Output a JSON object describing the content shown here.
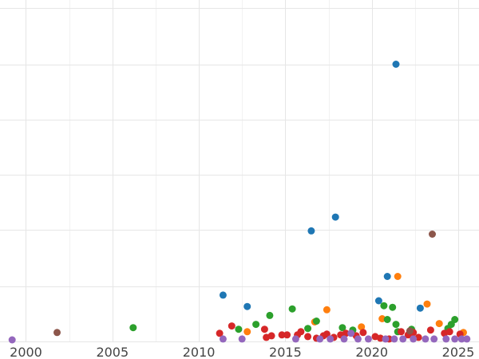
{
  "chart_data": {
    "type": "scatter",
    "title": "",
    "xlabel": "",
    "ylabel": "",
    "xlim": [
      1998.5,
      2026.2
    ],
    "ylim": [
      0,
      420
    ],
    "xticks": [
      2000,
      2005,
      2010,
      2015,
      2020,
      2025
    ],
    "xtick_labels": [
      "2000",
      "2005",
      "2010",
      "2015",
      "2020",
      "2025"
    ],
    "yticks": [
      0,
      68,
      137,
      205,
      273,
      341,
      410
    ],
    "grid": true,
    "legend": "none",
    "series": [
      {
        "color": "#1f77b4",
        "points": [
          {
            "x": 2011.4,
            "y": 57
          },
          {
            "x": 2012.8,
            "y": 43
          },
          {
            "x": 2016.5,
            "y": 136
          },
          {
            "x": 2017.9,
            "y": 153
          },
          {
            "x": 2020.4,
            "y": 50
          },
          {
            "x": 2020.9,
            "y": 80
          },
          {
            "x": 2021.4,
            "y": 341
          },
          {
            "x": 2022.8,
            "y": 41
          }
        ]
      },
      {
        "color": "#ff7f0e",
        "points": [
          {
            "x": 2012.8,
            "y": 12
          },
          {
            "x": 2016.7,
            "y": 24
          },
          {
            "x": 2017.4,
            "y": 39
          },
          {
            "x": 2019.4,
            "y": 18
          },
          {
            "x": 2020.6,
            "y": 28
          },
          {
            "x": 2021.5,
            "y": 80
          },
          {
            "x": 2023.2,
            "y": 46
          },
          {
            "x": 2023.9,
            "y": 22
          },
          {
            "x": 2025.3,
            "y": 11
          }
        ]
      },
      {
        "color": "#2ca02c",
        "points": [
          {
            "x": 2006.2,
            "y": 17
          },
          {
            "x": 2012.3,
            "y": 15
          },
          {
            "x": 2013.3,
            "y": 21
          },
          {
            "x": 2014.1,
            "y": 32
          },
          {
            "x": 2015.4,
            "y": 40
          },
          {
            "x": 2016.3,
            "y": 16
          },
          {
            "x": 2016.8,
            "y": 25
          },
          {
            "x": 2018.3,
            "y": 17
          },
          {
            "x": 2018.9,
            "y": 14
          },
          {
            "x": 2020.7,
            "y": 44
          },
          {
            "x": 2020.9,
            "y": 27
          },
          {
            "x": 2021.2,
            "y": 42
          },
          {
            "x": 2021.4,
            "y": 21
          },
          {
            "x": 2021.5,
            "y": 12
          },
          {
            "x": 2022.3,
            "y": 15
          },
          {
            "x": 2024.4,
            "y": 16
          },
          {
            "x": 2024.6,
            "y": 21
          },
          {
            "x": 2024.8,
            "y": 27
          }
        ]
      },
      {
        "color": "#d62728",
        "points": [
          {
            "x": 2011.2,
            "y": 10
          },
          {
            "x": 2011.9,
            "y": 19
          },
          {
            "x": 2013.8,
            "y": 15
          },
          {
            "x": 2013.9,
            "y": 5
          },
          {
            "x": 2014.2,
            "y": 7
          },
          {
            "x": 2014.8,
            "y": 8
          },
          {
            "x": 2015.1,
            "y": 8
          },
          {
            "x": 2015.7,
            "y": 8
          },
          {
            "x": 2015.9,
            "y": 12
          },
          {
            "x": 2016.3,
            "y": 6
          },
          {
            "x": 2016.8,
            "y": 4
          },
          {
            "x": 2017.2,
            "y": 7
          },
          {
            "x": 2017.4,
            "y": 9
          },
          {
            "x": 2017.8,
            "y": 5
          },
          {
            "x": 2018.2,
            "y": 8
          },
          {
            "x": 2018.5,
            "y": 10
          },
          {
            "x": 2019.1,
            "y": 7
          },
          {
            "x": 2019.5,
            "y": 11
          },
          {
            "x": 2020.2,
            "y": 6
          },
          {
            "x": 2020.5,
            "y": 4
          },
          {
            "x": 2021.0,
            "y": 3
          },
          {
            "x": 2021.7,
            "y": 12
          },
          {
            "x": 2022.1,
            "y": 8
          },
          {
            "x": 2022.4,
            "y": 11
          },
          {
            "x": 2022.7,
            "y": 5
          },
          {
            "x": 2023.4,
            "y": 14
          },
          {
            "x": 2024.2,
            "y": 10
          },
          {
            "x": 2024.5,
            "y": 12
          },
          {
            "x": 2025.1,
            "y": 9
          }
        ]
      },
      {
        "color": "#8c564b",
        "points": [
          {
            "x": 2001.8,
            "y": 11
          },
          {
            "x": 2022.2,
            "y": 13
          },
          {
            "x": 2023.5,
            "y": 132
          }
        ]
      },
      {
        "color": "#9467bd",
        "points": [
          {
            "x": 1999.2,
            "y": 2
          },
          {
            "x": 2011.4,
            "y": 3
          },
          {
            "x": 2012.5,
            "y": 3
          },
          {
            "x": 2015.6,
            "y": 3
          },
          {
            "x": 2017.0,
            "y": 3
          },
          {
            "x": 2017.6,
            "y": 3
          },
          {
            "x": 2018.4,
            "y": 3
          },
          {
            "x": 2018.8,
            "y": 10
          },
          {
            "x": 2019.2,
            "y": 3
          },
          {
            "x": 2019.8,
            "y": 3
          },
          {
            "x": 2020.8,
            "y": 3
          },
          {
            "x": 2021.3,
            "y": 3
          },
          {
            "x": 2021.8,
            "y": 3
          },
          {
            "x": 2022.4,
            "y": 3
          },
          {
            "x": 2023.1,
            "y": 3
          },
          {
            "x": 2023.6,
            "y": 3
          },
          {
            "x": 2024.3,
            "y": 3
          },
          {
            "x": 2024.8,
            "y": 3
          },
          {
            "x": 2025.2,
            "y": 3
          },
          {
            "x": 2025.5,
            "y": 3
          }
        ]
      }
    ]
  }
}
